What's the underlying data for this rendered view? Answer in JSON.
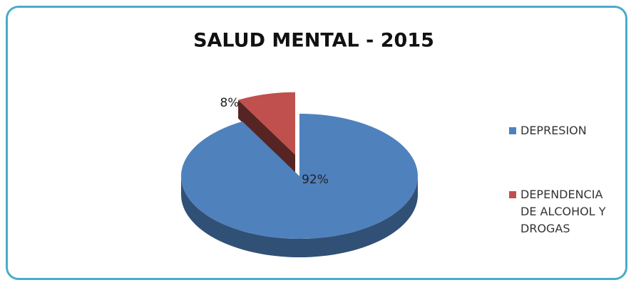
{
  "chart_data": {
    "type": "pie",
    "title": "SALUD MENTAL - 2015",
    "categories": [
      "DEPRESION",
      "DEPENDENCIA DE ALCOHOL Y DROGAS"
    ],
    "values": [
      92,
      8
    ],
    "value_labels": [
      "92%",
      "8%"
    ],
    "colors": [
      "#4f81bd",
      "#c0504d"
    ],
    "legend": "right"
  }
}
